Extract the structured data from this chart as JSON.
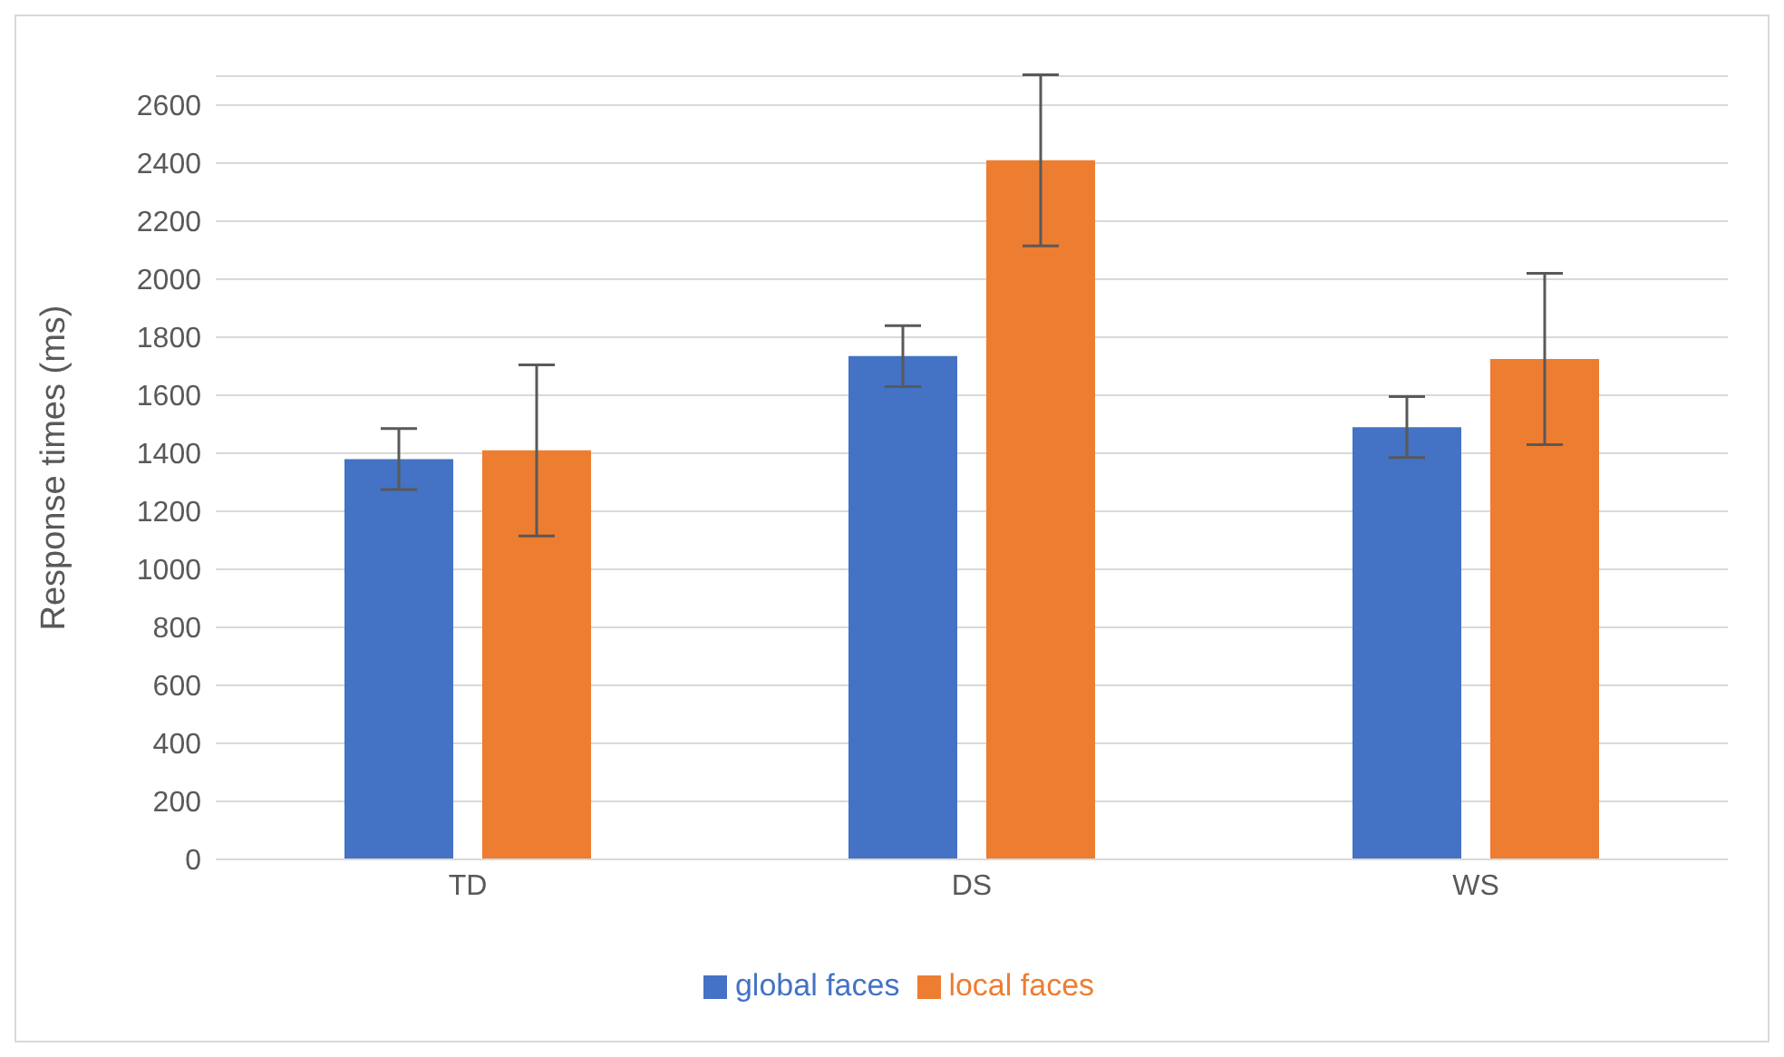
{
  "chart_data": {
    "type": "bar",
    "ylabel": "Response times (ms)",
    "categories": [
      "TD",
      "DS",
      "WS"
    ],
    "series": [
      {
        "name": "global faces",
        "color": "#4472c4",
        "values": [
          1380,
          1735,
          1490
        ],
        "errors": [
          105,
          105,
          105
        ]
      },
      {
        "name": "local faces",
        "color": "#ed7d31",
        "values": [
          1410,
          2410,
          1725
        ],
        "errors": [
          295,
          295,
          295
        ]
      }
    ],
    "ylim": [
      0,
      2700
    ],
    "yticks": [
      0,
      200,
      400,
      600,
      800,
      1000,
      1200,
      1400,
      1600,
      1800,
      2000,
      2200,
      2400,
      2600
    ],
    "grid": "y",
    "legend": "bottom"
  }
}
